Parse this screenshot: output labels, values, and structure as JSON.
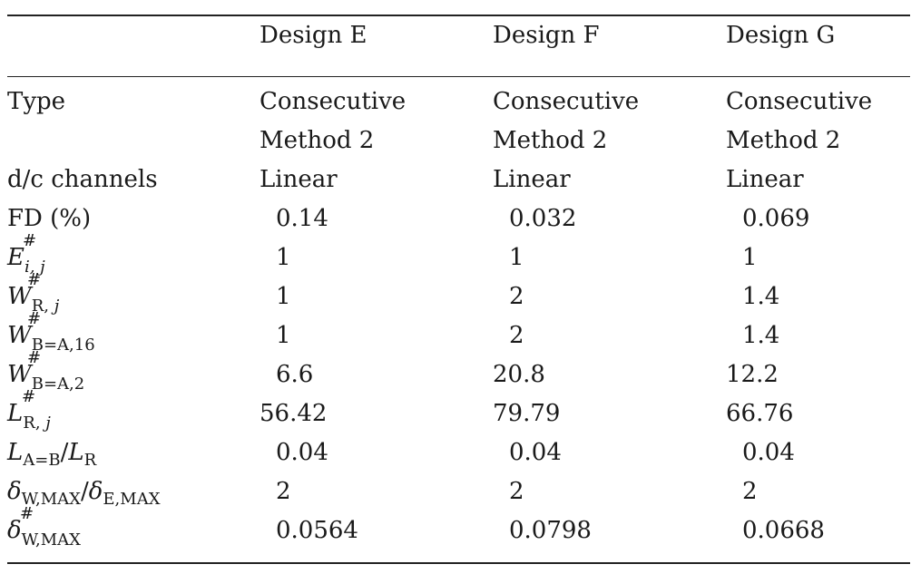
{
  "table": {
    "columns": [
      "",
      "Design E",
      "Design F",
      "Design G"
    ],
    "rows": {
      "type": {
        "label": "Type",
        "values": [
          "Consecutive",
          "Consecutive",
          "Consecutive"
        ],
        "values_line2": [
          "Method 2",
          "Method 2",
          "Method 2"
        ]
      },
      "dc_channels": {
        "label": "d/c channels",
        "values": [
          "Linear",
          "Linear",
          "Linear"
        ]
      },
      "fd": {
        "label": "FD (%)",
        "values": [
          "0.14",
          "0.032",
          "0.069"
        ]
      },
      "e_ij": {
        "sym": "E",
        "sup": "#",
        "sub": "i, j",
        "values": [
          "1",
          "1",
          "1"
        ]
      },
      "w_rj": {
        "sym": "W",
        "sup": "#",
        "sub_roman": "R,",
        "sub_italic": "j",
        "values": [
          "1",
          "2",
          "1.4"
        ]
      },
      "w_ba16": {
        "sym": "W",
        "sup": "#",
        "sub": "B=A,16",
        "values": [
          "1",
          "2",
          "1.4"
        ]
      },
      "w_ba2": {
        "sym": "W",
        "sup": "#",
        "sub": "B=A,2",
        "values": [
          "6.6",
          "20.8",
          "12.2"
        ]
      },
      "l_rj": {
        "sym": "L",
        "sup": "#",
        "sub_roman": "R,",
        "sub_italic": "j",
        "values": [
          "56.42",
          "79.79",
          "66.76"
        ]
      },
      "l_ratio": {
        "sym1": "L",
        "sub1": "A=B",
        "slash": "/",
        "sym2": "L",
        "sub2": "R",
        "values": [
          "0.04",
          "0.04",
          "0.04"
        ]
      },
      "delta_ratio": {
        "sym1": "δ",
        "sub1": "W,MAX",
        "slash": "/",
        "sym2": "δ",
        "sub2": "E,MAX",
        "values": [
          "2",
          "2",
          "2"
        ]
      },
      "delta_w": {
        "sym": "δ",
        "sup": "#",
        "sub": "W,MAX",
        "values": [
          "0.0564",
          "0.0798",
          "0.0668"
        ]
      }
    }
  }
}
